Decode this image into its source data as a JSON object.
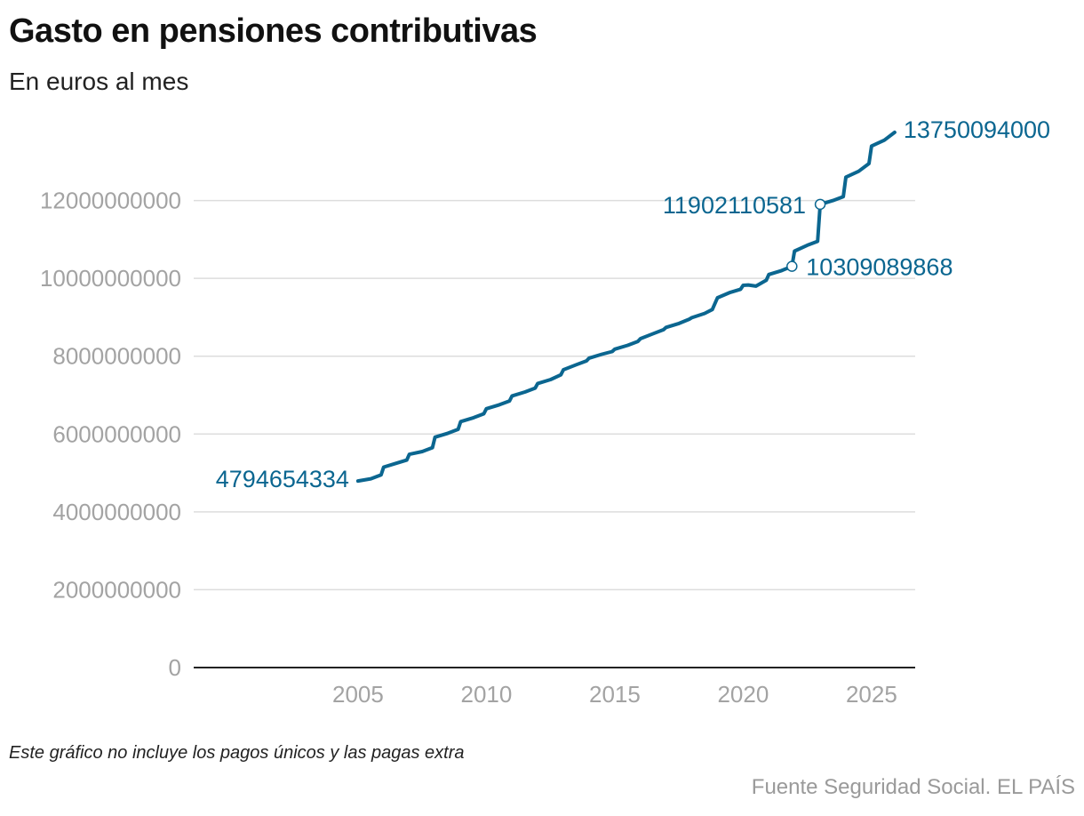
{
  "header": {
    "title": "Gasto en pensiones contributivas",
    "subtitle": "En euros al mes"
  },
  "footer": {
    "note": "Este gráfico no incluye los pagos únicos y las pagas extra",
    "source": "Fuente Seguridad Social. EL PAÍS"
  },
  "colors": {
    "line": "#0b6690",
    "grid": "#dddddd",
    "axis": "#222222",
    "tick_text": "#a3a3a3"
  },
  "chart_data": {
    "type": "line",
    "title": "Gasto en pensiones contributivas",
    "subtitle": "En euros al mes",
    "xlabel": "",
    "ylabel": "",
    "xlim": [
      1998.6,
      2026.7
    ],
    "ylim": [
      0,
      14000000000
    ],
    "x_ticks": [
      "2005",
      "2010",
      "2015",
      "2020",
      "2025"
    ],
    "y_ticks": [
      "0",
      "2000000000",
      "4000000000",
      "6000000000",
      "8000000000",
      "10000000000",
      "12000000000"
    ],
    "grid": true,
    "legend": "none",
    "series": [
      {
        "x": [
          2005.0,
          2005.5,
          2005.9,
          2006.0,
          2006.5,
          2006.9,
          2007.0,
          2007.5,
          2007.9,
          2008.0,
          2008.5,
          2008.9,
          2009.0,
          2009.5,
          2009.9,
          2010.0,
          2010.5,
          2010.9,
          2011.0,
          2011.5,
          2011.9,
          2012.0,
          2012.5,
          2012.9,
          2013.0,
          2013.5,
          2013.9,
          2014.0,
          2014.5,
          2014.9,
          2015.0,
          2015.5,
          2015.9,
          2016.0,
          2016.5,
          2016.9,
          2017.0,
          2017.5,
          2017.9,
          2018.0,
          2018.5,
          2018.8,
          2018.9,
          2019.0,
          2019.5,
          2019.9,
          2020.0,
          2020.2,
          2020.5,
          2020.9,
          2021.0,
          2021.5,
          2021.9,
          2022.0,
          2022.5,
          2022.9,
          2023.0,
          2023.5,
          2023.9,
          2024.0,
          2024.5,
          2024.9,
          2025.0,
          2025.5,
          2025.9
        ],
        "y": [
          4794654334,
          4850000000,
          4950000000,
          5150000000,
          5250000000,
          5330000000,
          5480000000,
          5550000000,
          5650000000,
          5920000000,
          6020000000,
          6120000000,
          6320000000,
          6420000000,
          6520000000,
          6650000000,
          6750000000,
          6850000000,
          6980000000,
          7080000000,
          7180000000,
          7300000000,
          7400000000,
          7520000000,
          7650000000,
          7780000000,
          7880000000,
          7950000000,
          8050000000,
          8120000000,
          8180000000,
          8280000000,
          8380000000,
          8450000000,
          8580000000,
          8680000000,
          8740000000,
          8840000000,
          8950000000,
          8990000000,
          9100000000,
          9200000000,
          9350000000,
          9500000000,
          9640000000,
          9720000000,
          9820000000,
          9830000000,
          9800000000,
          9950000000,
          10100000000,
          10200000000,
          10309089868,
          10700000000,
          10850000000,
          10950000000,
          11902110581,
          12000000000,
          12100000000,
          12600000000,
          12750000000,
          12950000000,
          13400000000,
          13550000000,
          13750094000
        ]
      }
    ],
    "annotations": [
      {
        "label": "4794654334",
        "x": 2005.0,
        "y": 4794654334,
        "marker": false
      },
      {
        "label": "10309089868",
        "x": 2021.9,
        "y": 10309089868,
        "marker": true
      },
      {
        "label": "11902110581",
        "x": 2023.0,
        "y": 11902110581,
        "marker": true
      },
      {
        "label": "13750094000",
        "x": 2025.9,
        "y": 13750094000,
        "marker": false
      }
    ]
  }
}
